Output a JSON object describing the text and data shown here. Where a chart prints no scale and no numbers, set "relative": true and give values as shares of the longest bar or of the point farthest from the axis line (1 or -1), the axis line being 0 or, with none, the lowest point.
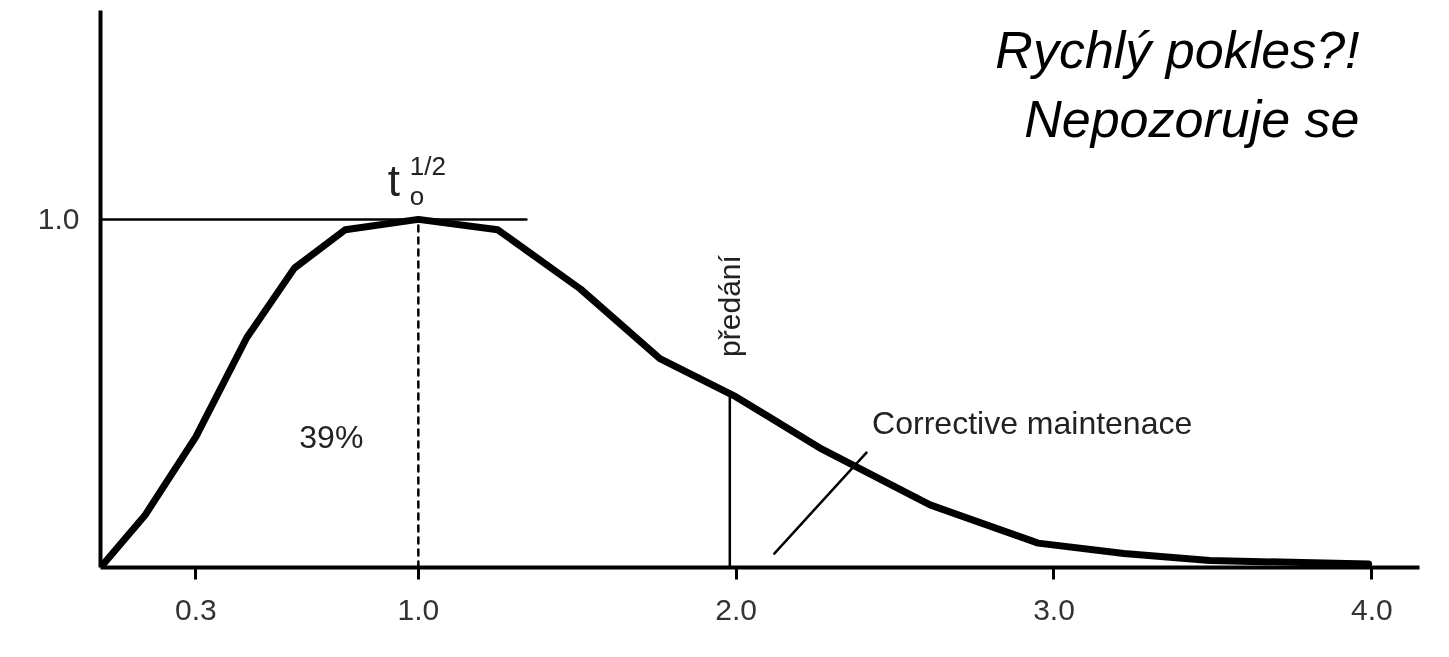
{
  "chart_data": {
    "type": "line",
    "title": "Rychlý pokles?!\nNepozoruje se",
    "xlim": [
      0,
      4.15
    ],
    "relative": true,
    "xticks": [
      0.3,
      {
        "value": 1,
        "label": "1.0"
      },
      {
        "value": 2,
        "label": "2.0"
      },
      {
        "value": 3,
        "label": "3.0"
      },
      {
        "value": 4,
        "label": "4.0"
      }
    ],
    "grid": false,
    "series": [
      {
        "color": "#000000",
        "x": [
          0,
          0.14,
          0.3,
          0.46,
          0.61,
          0.77,
          1.0,
          1.25,
          1.51,
          1.76,
          2.0,
          2.27,
          2.61,
          2.95,
          3.22,
          3.49,
          3.99
        ],
        "values": [
          0,
          0.15,
          0.375,
          0.66,
          0.86,
          0.97,
          1.0,
          0.97,
          0.8,
          0.6,
          0.49,
          0.34,
          0.18,
          0.07,
          0.04,
          0.02,
          0.01
        ]
      },
      {
        "color": "#000000",
        "x": [
          1.0,
          1.0
        ],
        "values": [
          0,
          1.0
        ],
        "line_style": "dashed"
      },
      {
        "color": "#000000",
        "x": [
          0,
          1.34
        ],
        "values": [
          1.0,
          1.0
        ]
      },
      {
        "color": "#000000",
        "x": [
          1.98,
          1.98
        ],
        "values": [
          0,
          0.49
        ]
      },
      {
        "color": "#000000",
        "x": [
          2.41,
          2.12
        ],
        "values": [
          0.33,
          0.04
        ]
      }
    ],
    "annotations": [
      {
        "text": "t$_{o}$$^{1/2}$",
        "x": 1.0,
        "y": 1.0
      },
      {
        "text": "předání",
        "x": 1.98,
        "y": 0.49
      },
      "39%",
      "Corrective maintenace",
      "1.0"
    ]
  }
}
